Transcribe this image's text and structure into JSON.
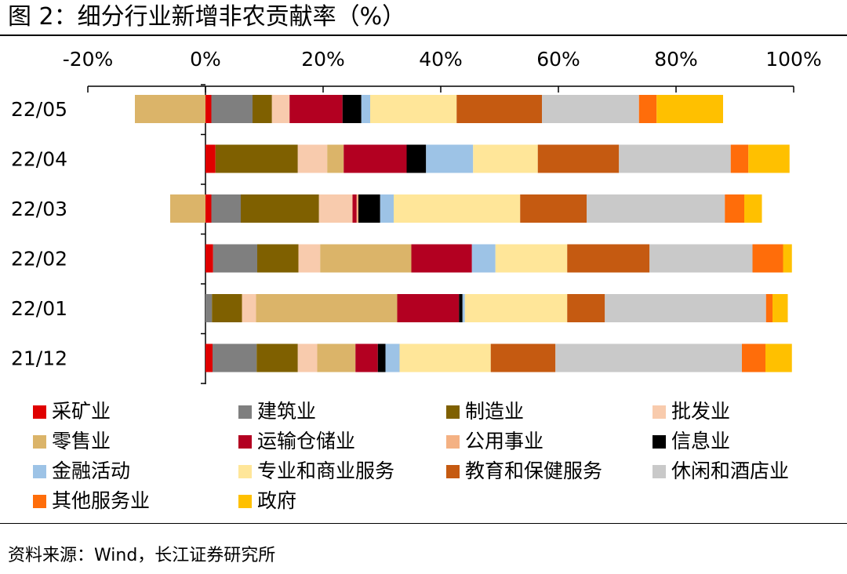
{
  "header": {
    "title": "图 2：细分行业新增非农贡献率（%）"
  },
  "footer": {
    "source": "资料来源：Wind，长江证券研究所"
  },
  "chart_data": {
    "type": "bar",
    "orientation": "horizontal",
    "stacked": true,
    "title": "图 2：细分行业新增非农贡献率（%）",
    "xlim": [
      -20,
      100
    ],
    "x_ticks": [
      "-20%",
      "0%",
      "20%",
      "40%",
      "60%",
      "80%",
      "100%"
    ],
    "x_tick_values": [
      -20,
      0,
      20,
      40,
      60,
      80,
      100
    ],
    "axis_position": "top",
    "grid": false,
    "legend_position": "bottom",
    "categories": [
      "22/05",
      "22/04",
      "22/03",
      "22/02",
      "22/01",
      "21/12"
    ],
    "series": [
      {
        "name": "采矿业",
        "color": "#e00000",
        "values": [
          1.0,
          1.7,
          1.0,
          1.3,
          0.0,
          1.2
        ]
      },
      {
        "name": "建筑业",
        "color": "#7f7f7f",
        "values": [
          7.0,
          0.0,
          5.0,
          7.5,
          1.1,
          7.5
        ]
      },
      {
        "name": "制造业",
        "color": "#7f6000",
        "values": [
          3.3,
          14.0,
          13.3,
          7.0,
          5.1,
          7.0
        ]
      },
      {
        "name": "批发业",
        "color": "#f8cbad",
        "values": [
          3.0,
          5.0,
          5.7,
          3.7,
          2.4,
          3.3
        ]
      },
      {
        "name": "零售业",
        "color": "#dbb469",
        "values": [
          -12.0,
          2.8,
          -6.0,
          15.5,
          24.0,
          6.5
        ]
      },
      {
        "name": "运输仓储业",
        "color": "#b30021",
        "values": [
          9.0,
          10.7,
          0.7,
          10.3,
          10.5,
          3.8
        ]
      },
      {
        "name": "公用事业",
        "color": "#f4b183",
        "values": [
          0.0,
          0.0,
          0.3,
          0.0,
          0.0,
          0.0
        ]
      },
      {
        "name": "信息业",
        "color": "#000000",
        "values": [
          3.2,
          3.3,
          3.7,
          0.0,
          0.6,
          1.3
        ]
      },
      {
        "name": "金融活动",
        "color": "#9dc3e6",
        "values": [
          1.5,
          8.0,
          2.3,
          4.0,
          0.4,
          2.4
        ]
      },
      {
        "name": "专业和商业服务",
        "color": "#ffe699",
        "values": [
          14.7,
          11.0,
          21.5,
          12.2,
          17.4,
          15.5
        ]
      },
      {
        "name": "教育和保健服务",
        "color": "#c55a11",
        "values": [
          14.5,
          13.8,
          11.3,
          14.0,
          6.4,
          11.0
        ]
      },
      {
        "name": "休闲和酒店业",
        "color": "#c9c9c9",
        "values": [
          16.5,
          19.0,
          23.5,
          17.5,
          27.4,
          31.7
        ]
      },
      {
        "name": "其他服务业",
        "color": "#ff6d0a",
        "values": [
          3.0,
          3.0,
          3.3,
          5.2,
          1.1,
          4.0
        ]
      },
      {
        "name": "政府",
        "color": "#ffc000",
        "values": [
          11.3,
          7.0,
          3.0,
          1.5,
          2.6,
          4.5
        ]
      }
    ]
  }
}
